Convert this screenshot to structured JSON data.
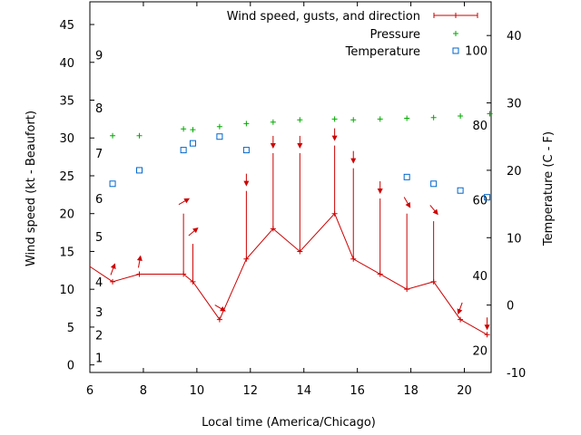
{
  "chart_data": {
    "type": "line",
    "xlabel": "Local time (America/Chicago)",
    "ylabel_left": "Wind speed (kt - Beaufort)",
    "ylabel_right": "Temperature (C - F)",
    "xlim": [
      6,
      21
    ],
    "ylim_left": [
      -1,
      48
    ],
    "ylim_right": [
      -10,
      45
    ],
    "x_ticks": [
      6,
      8,
      10,
      12,
      14,
      16,
      18,
      20
    ],
    "y_left_ticks": [
      0,
      5,
      10,
      15,
      20,
      25,
      30,
      35,
      40,
      45
    ],
    "y_right_ticks": [
      -10,
      0,
      10,
      20,
      30,
      40
    ],
    "beaufort_labels": [
      {
        "label": "1",
        "kt": 1
      },
      {
        "label": "2",
        "kt": 4
      },
      {
        "label": "3",
        "kt": 7
      },
      {
        "label": "4",
        "kt": 11
      },
      {
        "label": "5",
        "kt": 17
      },
      {
        "label": "6",
        "kt": 22
      },
      {
        "label": "7",
        "kt": 28
      },
      {
        "label": "8",
        "kt": 34
      },
      {
        "label": "9",
        "kt": 41
      }
    ],
    "fahrenheit_labels": [
      {
        "label": "20",
        "c": -6.7
      },
      {
        "label": "40",
        "c": 4.4
      },
      {
        "label": "60",
        "c": 15.6
      },
      {
        "label": "80",
        "c": 26.7
      },
      {
        "label": "100",
        "c": 37.8
      }
    ],
    "legend": {
      "position": "top-right",
      "entries": [
        "Wind speed, gusts, and direction",
        "Pressure",
        "Temperature"
      ]
    },
    "series": [
      {
        "name": "Wind speed, gusts, and direction",
        "color": "#cc0000",
        "points": [
          {
            "x": 5.9,
            "speed": 13
          },
          {
            "x": 6.85,
            "speed": 11,
            "dir": 200
          },
          {
            "x": 7.85,
            "speed": 12,
            "dir": 190
          },
          {
            "x": 9.5,
            "speed": 12,
            "gust": 20,
            "dir": 240
          },
          {
            "x": 9.85,
            "speed": 11,
            "gust": 16,
            "dir": 230
          },
          {
            "x": 10.85,
            "speed": 6,
            "dir": 300
          },
          {
            "x": 11.85,
            "speed": 14,
            "gust": 23,
            "dir": 0
          },
          {
            "x": 12.85,
            "speed": 18,
            "gust": 28,
            "dir": 0
          },
          {
            "x": 13.85,
            "speed": 15,
            "gust": 28,
            "dir": 0
          },
          {
            "x": 15.15,
            "speed": 20,
            "gust": 29,
            "dir": 0
          },
          {
            "x": 15.85,
            "speed": 14,
            "gust": 26,
            "dir": 0
          },
          {
            "x": 16.85,
            "speed": 12,
            "gust": 22,
            "dir": 0
          },
          {
            "x": 17.85,
            "speed": 10,
            "gust": 20,
            "dir": 330
          },
          {
            "x": 18.85,
            "speed": 11,
            "gust": 19,
            "dir": 320
          },
          {
            "x": 19.85,
            "speed": 6,
            "dir": 20
          },
          {
            "x": 20.85,
            "speed": 4,
            "dir": 0
          }
        ]
      },
      {
        "name": "Pressure",
        "color": "#00aa00",
        "points": [
          {
            "x": 6.85,
            "y": 30.3
          },
          {
            "x": 7.85,
            "y": 30.3
          },
          {
            "x": 9.5,
            "y": 31.2
          },
          {
            "x": 9.85,
            "y": 31.1
          },
          {
            "x": 10.85,
            "y": 31.5
          },
          {
            "x": 11.85,
            "y": 31.9
          },
          {
            "x": 12.85,
            "y": 32.1
          },
          {
            "x": 13.85,
            "y": 32.4
          },
          {
            "x": 15.15,
            "y": 32.5
          },
          {
            "x": 15.85,
            "y": 32.4
          },
          {
            "x": 16.85,
            "y": 32.5
          },
          {
            "x": 17.85,
            "y": 32.6
          },
          {
            "x": 18.85,
            "y": 32.7
          },
          {
            "x": 19.85,
            "y": 32.9
          },
          {
            "x": 20.95,
            "y": 33.2
          }
        ]
      },
      {
        "name": "Temperature",
        "color": "#0066cc",
        "points": [
          {
            "x": 6.85,
            "y": 18
          },
          {
            "x": 7.85,
            "y": 20
          },
          {
            "x": 9.5,
            "y": 23
          },
          {
            "x": 9.85,
            "y": 24
          },
          {
            "x": 10.85,
            "y": 25
          },
          {
            "x": 11.85,
            "y": 23
          },
          {
            "x": 17.85,
            "y": 19
          },
          {
            "x": 18.85,
            "y": 18
          },
          {
            "x": 19.85,
            "y": 17
          },
          {
            "x": 20.85,
            "y": 16
          }
        ]
      }
    ]
  }
}
